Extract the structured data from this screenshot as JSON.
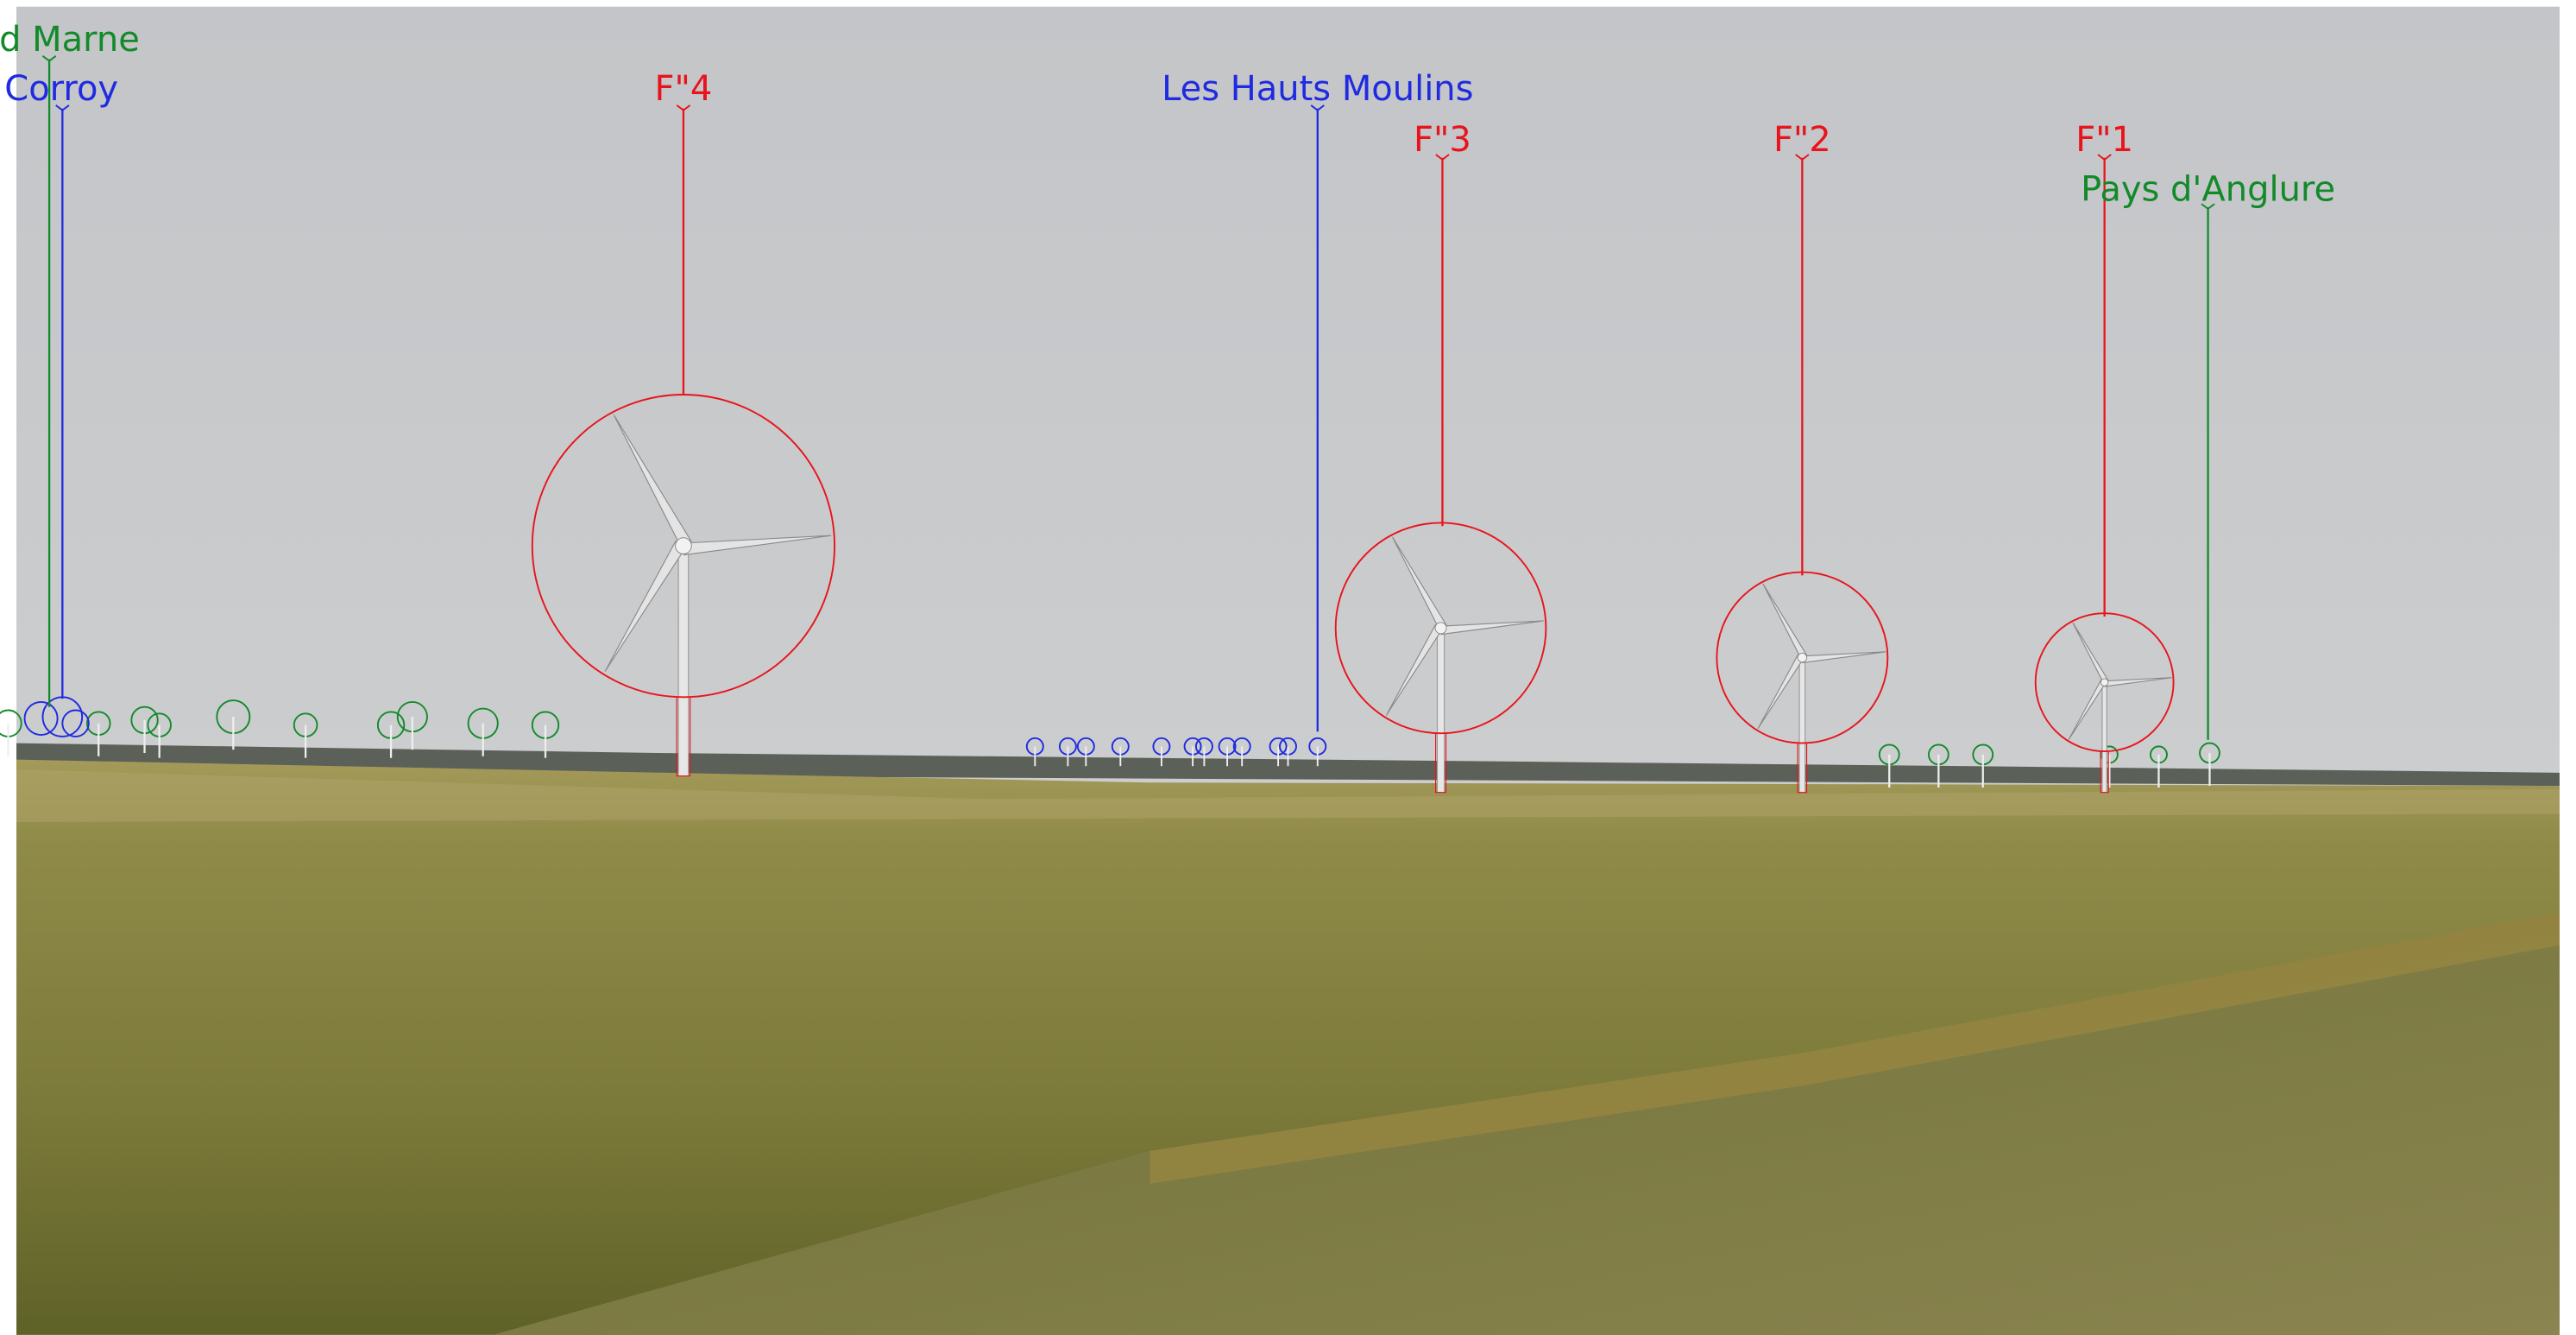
{
  "labels": [
    "d Marne",
    "Corroy",
    "F\"4",
    "Les Hauts Moulins",
    "F\"3",
    "F\"2",
    "F\"1",
    "Pays d'Anglure"
  ]
}
